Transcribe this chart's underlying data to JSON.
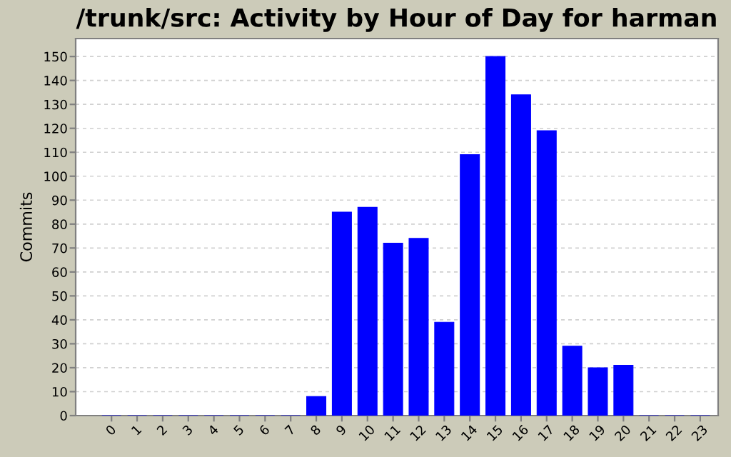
{
  "chart_data": {
    "type": "bar",
    "title": "/trunk/src: Activity by Hour of Day for harman",
    "ylabel": "Commits",
    "categories": [
      "0",
      "1",
      "2",
      "3",
      "4",
      "5",
      "6",
      "7",
      "8",
      "9",
      "10",
      "11",
      "12",
      "13",
      "14",
      "15",
      "16",
      "17",
      "18",
      "19",
      "20",
      "21",
      "22",
      "23"
    ],
    "values": [
      0,
      0,
      0,
      0,
      0,
      0,
      0,
      0,
      8,
      85,
      87,
      72,
      74,
      39,
      109,
      150,
      134,
      119,
      29,
      20,
      21,
      0,
      0,
      0
    ],
    "color": "#0000ff",
    "ylim": [
      0,
      157.5
    ],
    "yticks": [
      0,
      10,
      20,
      30,
      40,
      50,
      60,
      70,
      80,
      90,
      100,
      110,
      120,
      130,
      140,
      150
    ],
    "grid": "y",
    "legend": false
  }
}
